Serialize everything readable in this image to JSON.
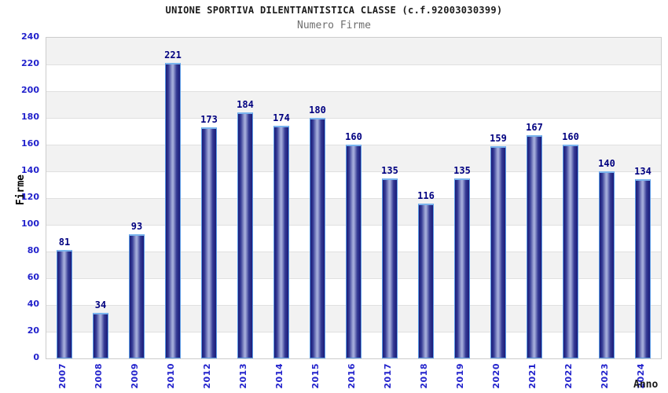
{
  "chart_data": {
    "type": "bar",
    "title": "UNIONE SPORTIVA DILENTTANTISTICA CLASSE (c.f.92003030399)",
    "subtitle": "Numero Firme",
    "xlabel": "Anno",
    "ylabel": "Firme",
    "categories": [
      "2007",
      "2008",
      "2009",
      "2010",
      "2012",
      "2013",
      "2014",
      "2015",
      "2016",
      "2017",
      "2018",
      "2019",
      "2020",
      "2021",
      "2022",
      "2023",
      "2024"
    ],
    "values": [
      81,
      34,
      93,
      221,
      173,
      184,
      174,
      180,
      160,
      135,
      116,
      135,
      159,
      167,
      160,
      140,
      134
    ],
    "ylim": [
      0,
      240
    ],
    "ytick_step": 20,
    "grid": "horizontal-bands-alternating",
    "legend": "none",
    "bar_value_labels_shown": true,
    "colors": {
      "bar_edge": "#5c9ce6",
      "bar_cap": "#7ab4ee",
      "bar_dark": "#1b1b78",
      "bar_mid": "#343a94",
      "bar_light": "#a2aad9",
      "value_label": "#000080",
      "tick_label": "#2222cc",
      "title": "#1a1a1a",
      "subtitle": "#6e6e6e",
      "band_gray": "#f2f2f2",
      "band_white": "#ffffff",
      "gridline": "#e0e0e0",
      "plot_border": "#cccccc",
      "background": "#ffffff"
    }
  }
}
